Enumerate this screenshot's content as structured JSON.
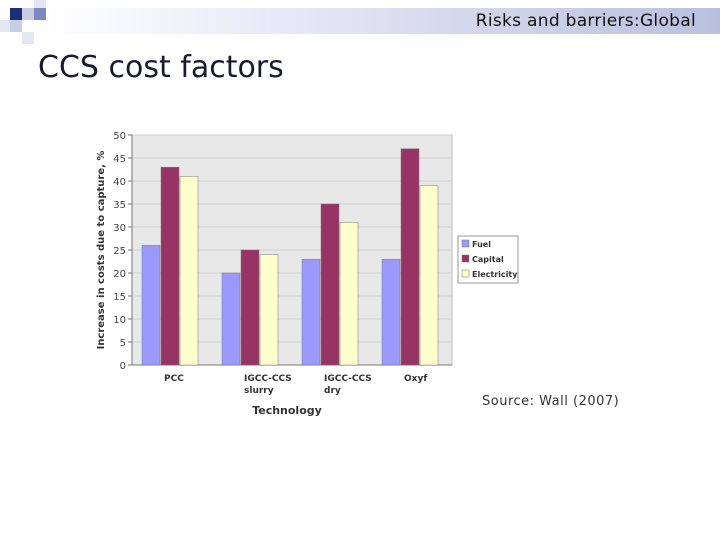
{
  "header": {
    "section_title": "Risks and barriers:Global"
  },
  "slide": {
    "title": "CCS cost factors"
  },
  "source_note": "Source: Wall (2007)",
  "colors": {
    "fuel": "#9999ff",
    "capital": "#993366",
    "electricity": "#ffffcc",
    "plot_bg": "#e8e8e8"
  },
  "chart_data": {
    "type": "bar",
    "title": "",
    "xlabel": "Technology",
    "ylabel": "Increase in costs due to capture, %",
    "ylim": [
      0,
      50
    ],
    "yticks": [
      0,
      5,
      10,
      15,
      20,
      25,
      30,
      35,
      40,
      45,
      50
    ],
    "categories": [
      [
        "PCC"
      ],
      [
        "IGCC-CCS",
        "slurry"
      ],
      [
        "IGCC-CCS",
        "dry"
      ],
      [
        "Oxyf"
      ]
    ],
    "series": [
      {
        "name": "Fuel",
        "color": "#9999ff",
        "values": [
          26,
          20,
          23,
          23
        ]
      },
      {
        "name": "Capital",
        "color": "#993366",
        "values": [
          43,
          25,
          35,
          47
        ]
      },
      {
        "name": "Electricity",
        "color": "#ffffcc",
        "values": [
          41,
          24,
          31,
          39
        ]
      }
    ],
    "legend": "right",
    "grid": true
  }
}
